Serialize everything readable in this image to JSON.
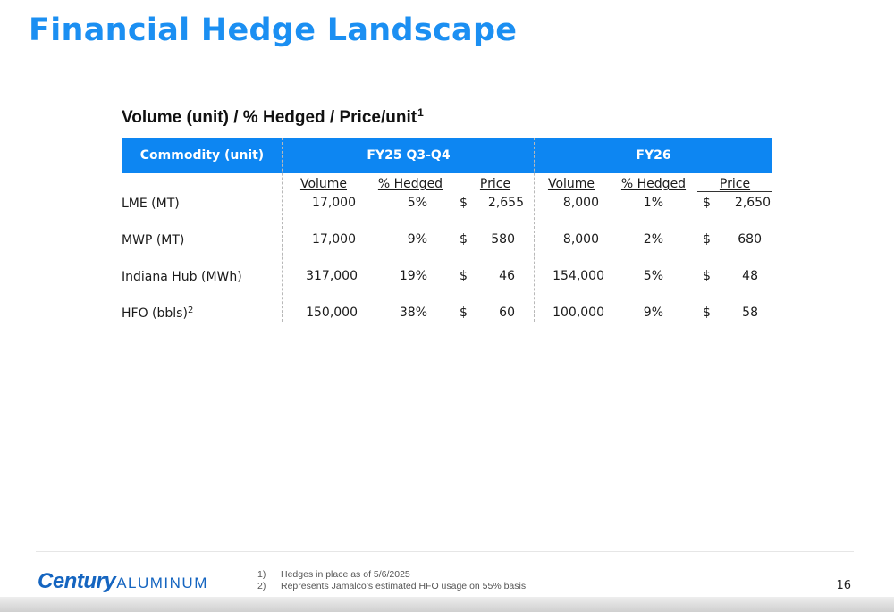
{
  "title": "Financial Hedge Landscape",
  "table": {
    "caption": "Volume (unit) / % Hedged / Price/unit",
    "caption_sup": "1",
    "header": {
      "commodity": "Commodity (unit)",
      "period1": "FY25 Q3-Q4",
      "period2": "FY26"
    },
    "subheaders": {
      "p1": [
        "Volume",
        "% Hedged",
        "Price"
      ],
      "p2": [
        "Volume",
        "% Hedged",
        "Price"
      ]
    },
    "rows": [
      {
        "label": "LME (MT)",
        "sup": "",
        "v1": "17,000",
        "h1": "5%",
        "c1": "$",
        "p1": "2,655",
        "v2": "8,000",
        "h2": "1%",
        "c2": "$",
        "p2": "2,650"
      },
      {
        "label": "MWP (MT)",
        "sup": "",
        "v1": "17,000",
        "h1": "9%",
        "c1": "$",
        "p1": "580",
        "v2": "8,000",
        "h2": "2%",
        "c2": "$",
        "p2": "680"
      },
      {
        "label": "Indiana Hub (MWh)",
        "sup": "",
        "v1": "317,000",
        "h1": "19%",
        "c1": "$",
        "p1": "46",
        "v2": "154,000",
        "h2": "5%",
        "c2": "$",
        "p2": "48"
      },
      {
        "label": "HFO (bbls)",
        "sup": "2",
        "v1": "150,000",
        "h1": "38%",
        "c1": "$",
        "p1": "60",
        "v2": "100,000",
        "h2": "9%",
        "c2": "$",
        "p2": "58"
      }
    ]
  },
  "footer": {
    "logo_bold": "Century",
    "logo_light": "ALUMINUM",
    "footnotes": [
      {
        "num": "1)",
        "text": "Hedges in place as of 5/6/2025"
      },
      {
        "num": "2)",
        "text": "Represents Jamalco’s estimated HFO usage on 55% basis"
      }
    ],
    "page_number": "16"
  },
  "colors": {
    "title": "#1b8ff2",
    "header_band": "#0d86f2",
    "logo": "#1565c0"
  }
}
